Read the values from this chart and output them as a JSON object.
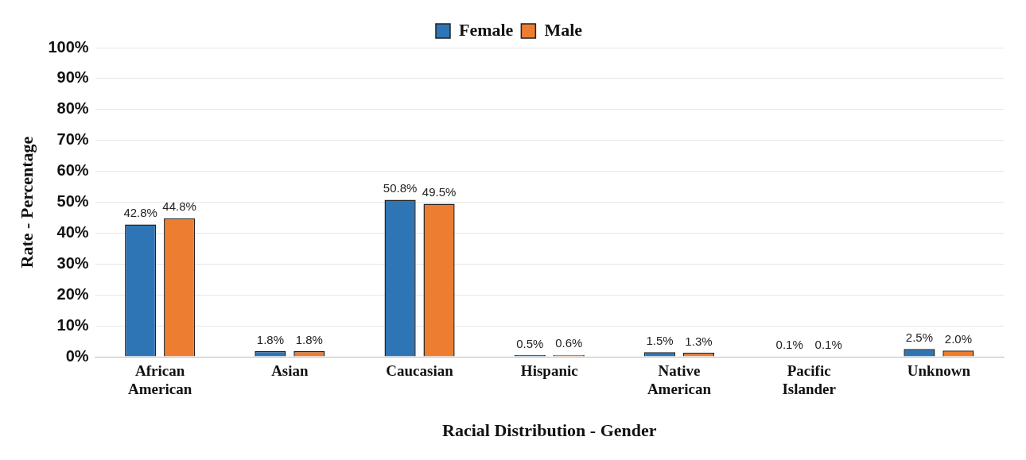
{
  "chart_data": {
    "type": "bar",
    "xlabel": "Racial Distribution - Gender",
    "ylabel": "Rate - Percentage",
    "categories": [
      "African American",
      "Asian",
      "Caucasian",
      "Hispanic",
      "Native American",
      "Pacific Islander",
      "Unknown"
    ],
    "series": [
      {
        "name": "Female",
        "color": "#2e75b6",
        "values": [
          42.8,
          1.8,
          50.8,
          0.5,
          1.5,
          0.1,
          2.5
        ],
        "value_labels": [
          "42.8%",
          "1.8%",
          "50.8%",
          "0.5%",
          "1.5%",
          "0.1%",
          "2.5%"
        ]
      },
      {
        "name": "Male",
        "color": "#ed7d31",
        "values": [
          44.8,
          1.8,
          49.5,
          0.6,
          1.3,
          0.1,
          2.0
        ],
        "value_labels": [
          "44.8%",
          "1.8%",
          "49.5%",
          "0.6%",
          "1.3%",
          "0.1%",
          "2.0%"
        ]
      }
    ],
    "ylim": [
      0,
      100
    ],
    "yticks": [
      {
        "value": 0,
        "label": "0%"
      },
      {
        "value": 10,
        "label": "10%"
      },
      {
        "value": 20,
        "label": "20%"
      },
      {
        "value": 30,
        "label": "30%"
      },
      {
        "value": 40,
        "label": "40%"
      },
      {
        "value": 50,
        "label": "50%"
      },
      {
        "value": 60,
        "label": "60%"
      },
      {
        "value": 70,
        "label": "70%"
      },
      {
        "value": 80,
        "label": "80%"
      },
      {
        "value": 90,
        "label": "90%"
      },
      {
        "value": 100,
        "label": "100%"
      }
    ],
    "grid": "y",
    "legend": "top"
  }
}
